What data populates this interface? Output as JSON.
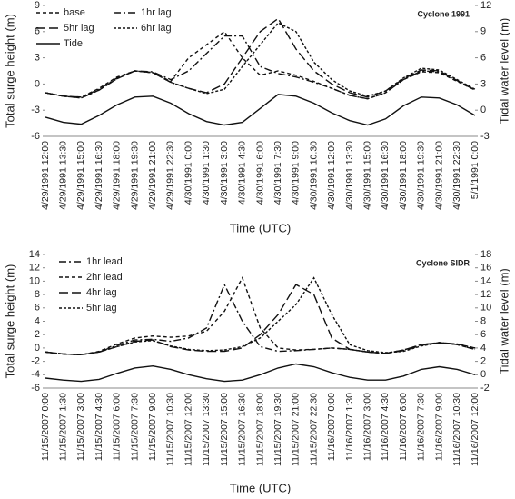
{
  "chart_data": [
    {
      "type": "line",
      "title": "Cyclone 1991",
      "x_label": "Time (UTC)",
      "y_label": "Total surge height (m)",
      "y2_label": "Tidal water level (m)",
      "categories": [
        "4/29/1991 12:00",
        "4/29/1991 13:30",
        "4/29/1991 15:00",
        "4/29/1991 16:30",
        "4/29/1991 18:00",
        "4/29/1991 19:30",
        "4/29/1991 21:00",
        "4/29/1991 22:30",
        "4/30/1991 0:00",
        "4/30/1991 1:30",
        "4/30/1991 3:00",
        "4/30/1991 4:30",
        "4/30/1991 6:00",
        "4/30/1991 7:30",
        "4/30/1991 9:00",
        "4/30/1991 10:30",
        "4/30/1991 12:00",
        "4/30/1991 13:30",
        "4/30/1991 15:00",
        "4/30/1991 16:30",
        "4/30/1991 18:00",
        "4/30/1991 19:30",
        "4/30/1991 21:00",
        "4/30/1991 22:30",
        "5/1/1991 0:00"
      ],
      "ylim": [
        -6,
        9
      ],
      "yticks": [
        -6,
        -3,
        0,
        3,
        6,
        9
      ],
      "y2lim": [
        -3,
        12
      ],
      "y2ticks": [
        -3,
        0,
        3,
        6,
        9,
        12
      ],
      "series": [
        {
          "name": "base",
          "color": "#111111",
          "dash": "4 3",
          "values": [
            -1.0,
            -1.4,
            -1.5,
            -0.5,
            0.8,
            1.5,
            1.3,
            0.3,
            3.0,
            4.5,
            6.0,
            3.0,
            1.0,
            1.5,
            1.0,
            0.3,
            -0.5,
            -1.3,
            -1.7,
            -1.0,
            0.5,
            1.4,
            1.3,
            0.3,
            -0.7
          ]
        },
        {
          "name": "1hr lag",
          "color": "#111111",
          "dash": "8 3 2 3",
          "values": [
            -1.0,
            -1.4,
            -1.5,
            -0.6,
            0.7,
            1.5,
            1.4,
            0.5,
            1.5,
            3.5,
            5.5,
            5.5,
            2.0,
            1.2,
            0.8,
            0.2,
            -0.5,
            -1.3,
            -1.7,
            -1.0,
            0.5,
            1.5,
            1.4,
            0.4,
            -0.7
          ]
        },
        {
          "name": "5hr lag",
          "color": "#111111",
          "dash": "10 4",
          "values": [
            -1.0,
            -1.4,
            -1.6,
            -0.7,
            0.6,
            1.5,
            1.3,
            0.2,
            -0.5,
            -1.0,
            0.0,
            3.0,
            6.0,
            7.5,
            4.0,
            1.5,
            0.0,
            -1.0,
            -1.5,
            -0.8,
            0.6,
            1.6,
            1.5,
            0.4,
            -0.7
          ]
        },
        {
          "name": "6hr lag",
          "color": "#111111",
          "dash": "3 2",
          "values": [
            -1.0,
            -1.4,
            -1.6,
            -0.7,
            0.6,
            1.5,
            1.3,
            0.2,
            -0.5,
            -1.1,
            -0.6,
            2.0,
            4.5,
            7.0,
            6.0,
            2.5,
            0.5,
            -0.8,
            -1.4,
            -0.8,
            0.7,
            1.8,
            1.6,
            0.5,
            -0.6
          ]
        },
        {
          "name": "Tide",
          "color": "#111111",
          "axis": "y2",
          "values": [
            -0.8,
            -1.4,
            -1.6,
            -0.6,
            0.6,
            1.5,
            1.6,
            0.8,
            -0.4,
            -1.3,
            -1.7,
            -1.4,
            0.2,
            1.8,
            1.6,
            0.8,
            -0.3,
            -1.2,
            -1.7,
            -1.0,
            0.5,
            1.5,
            1.4,
            0.6,
            -0.6
          ]
        }
      ]
    },
    {
      "type": "line",
      "title": "Cyclone SIDR",
      "x_label": "Time (UTC)",
      "y_label": "Total surge height (m)",
      "y2_label": "Tidal water level (m)",
      "categories": [
        "11/15/2007 0:00",
        "11/15/2007 1:30",
        "11/15/2007 3:00",
        "11/15/2007 4:30",
        "11/15/2007 6:00",
        "11/15/2007 7:30",
        "11/15/2007 9:00",
        "11/15/2007 10:30",
        "11/15/2007 12:00",
        "11/15/2007 13:30",
        "11/15/2007 15:00",
        "11/15/2007 16:30",
        "11/15/2007 18:00",
        "11/15/2007 19:30",
        "11/15/2007 21:00",
        "11/15/2007 22:30",
        "11/16/2007 0:00",
        "11/16/2007 1:30",
        "11/16/2007 3:00",
        "11/16/2007 4:30",
        "11/16/2007 6:00",
        "11/16/2007 7:30",
        "11/16/2007 9:00",
        "11/16/2007 10:30",
        "11/16/2007 12:00"
      ],
      "ylim": [
        -6,
        14
      ],
      "yticks": [
        -6,
        -4,
        -2,
        0,
        2,
        4,
        6,
        8,
        10,
        12,
        14
      ],
      "y2lim": [
        -2,
        18
      ],
      "y2ticks": [
        -2,
        0,
        2,
        4,
        6,
        8,
        10,
        12,
        14,
        16,
        18
      ],
      "series": [
        {
          "name": "1hr lead",
          "color": "#111111",
          "dash": "8 3 2 3",
          "values": [
            -0.6,
            -0.9,
            -1.0,
            -0.6,
            0.4,
            1.2,
            1.3,
            1.0,
            1.5,
            3.0,
            9.5,
            4.0,
            0.2,
            -0.5,
            -0.4,
            -0.2,
            0.0,
            -0.2,
            -0.6,
            -0.8,
            -0.3,
            0.5,
            0.8,
            0.5,
            -0.2
          ]
        },
        {
          "name": "2hr lead",
          "color": "#111111",
          "dash": "4 3",
          "values": [
            -0.6,
            -0.9,
            -1.0,
            -0.5,
            0.6,
            1.5,
            1.8,
            1.6,
            1.8,
            2.5,
            5.5,
            10.5,
            3.0,
            0.0,
            -0.3,
            -0.2,
            0.0,
            -0.2,
            -0.6,
            -0.8,
            -0.3,
            0.5,
            0.8,
            0.5,
            -0.2
          ]
        },
        {
          "name": "4hr lag",
          "color": "#111111",
          "dash": "10 4",
          "values": [
            -0.6,
            -0.9,
            -1.0,
            -0.6,
            0.2,
            1.0,
            1.2,
            0.2,
            -0.3,
            -0.5,
            -0.5,
            0.0,
            2.0,
            5.0,
            9.5,
            8.0,
            1.5,
            -0.2,
            -0.6,
            -0.8,
            -0.4,
            0.4,
            0.8,
            0.6,
            0.0
          ]
        },
        {
          "name": "5hr lag",
          "color": "#111111",
          "dash": "3 2",
          "values": [
            -0.6,
            -0.9,
            -1.0,
            -0.6,
            0.2,
            0.9,
            1.1,
            0.3,
            -0.2,
            -0.4,
            -0.3,
            0.2,
            1.5,
            4.0,
            6.5,
            10.5,
            5.0,
            0.5,
            -0.4,
            -0.7,
            -0.5,
            0.3,
            0.8,
            0.6,
            0.0
          ]
        },
        {
          "color": "#111111",
          "axis": "y2",
          "values": [
            -0.5,
            -0.8,
            -1.0,
            -0.7,
            0.2,
            1.0,
            1.3,
            0.8,
            0.0,
            -0.6,
            -1.0,
            -0.8,
            0.0,
            1.0,
            1.6,
            1.2,
            0.3,
            -0.4,
            -0.8,
            -0.8,
            -0.2,
            0.8,
            1.2,
            0.8,
            0.0
          ]
        }
      ]
    }
  ]
}
